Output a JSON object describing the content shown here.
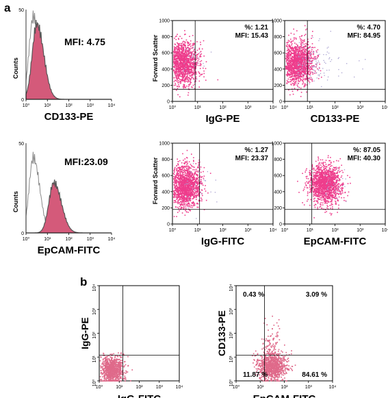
{
  "panel_letters": {
    "a": "a",
    "b": "b"
  },
  "chart_data": [
    {
      "type": "histogram",
      "panel": "a-row1-histogram",
      "xlabel": "CD133-PE",
      "ylabel": "Counts",
      "x_scale": "log",
      "xlim": [
        1,
        10000
      ],
      "ylim": [
        0,
        50
      ],
      "y_ticks": [
        "0",
        "50"
      ],
      "x_ticks": [
        "10⁰",
        "10¹",
        "10²",
        "10³",
        "10⁴"
      ],
      "annotation": "MFI: 4.75",
      "series": [
        {
          "role": "isotype-outline",
          "color": "#888888",
          "peak_x": 2.2,
          "peak_y": 46,
          "width": 0.22
        },
        {
          "role": "stained-filled",
          "color": "#d45a7a",
          "peak_x": 3.2,
          "peak_y": 42,
          "width": 0.24
        }
      ]
    },
    {
      "type": "scatter",
      "panel": "a-row1-dotplot-igg",
      "xlabel": "IgG-PE",
      "ylabel": "Forward Scatter",
      "x_scale": "log",
      "xlim": [
        1,
        10000
      ],
      "ylim": [
        0,
        1000
      ],
      "y_ticks": [
        "0",
        "200",
        "400",
        "600",
        "800",
        "1000"
      ],
      "x_ticks": [
        "10⁰",
        "10¹",
        "10²",
        "10³",
        "10⁴"
      ],
      "gate_x": 8,
      "gate_y": 150,
      "stats": {
        "percent": "%: 1.21",
        "mfi": "MFI: 15.43"
      },
      "cluster": {
        "center_x": 2.5,
        "center_y": 480,
        "spread_logx": 0.3,
        "spread_y": 130,
        "tail": "none"
      }
    },
    {
      "type": "scatter",
      "panel": "a-row1-dotplot-cd133",
      "xlabel": "CD133-PE",
      "ylabel": "",
      "x_scale": "log",
      "xlim": [
        1,
        10000
      ],
      "ylim": [
        0,
        1000
      ],
      "y_ticks": [
        "0",
        "200",
        "400",
        "600",
        "800",
        "1000"
      ],
      "x_ticks": [
        "10⁰",
        "10¹",
        "10²",
        "10³",
        "10⁴"
      ],
      "gate_x": 8,
      "gate_y": 150,
      "stats": {
        "percent": "%: 4.70",
        "mfi": "MFI: 84.95"
      },
      "cluster": {
        "center_x": 3,
        "center_y": 480,
        "spread_logx": 0.32,
        "spread_y": 130,
        "tail": "long"
      }
    },
    {
      "type": "histogram",
      "panel": "a-row2-histogram",
      "xlabel": "EpCAM-FITC",
      "ylabel": "Counts",
      "x_scale": "log",
      "xlim": [
        1,
        10000
      ],
      "ylim": [
        0,
        50
      ],
      "y_ticks": [
        "0",
        "50"
      ],
      "x_ticks": [
        "10⁰",
        "10¹",
        "10²",
        "10³",
        "10⁴"
      ],
      "annotation": "MFI:23.09",
      "series": [
        {
          "role": "isotype-outline",
          "color": "#888888",
          "peak_x": 2.2,
          "peak_y": 42,
          "width": 0.22
        },
        {
          "role": "stained-filled",
          "color": "#d45a7a",
          "peak_x": 20,
          "peak_y": 28,
          "width": 0.26
        }
      ]
    },
    {
      "type": "scatter",
      "panel": "a-row2-dotplot-igg",
      "xlabel": "IgG-FITC",
      "ylabel": "Forward Scatter",
      "x_scale": "log",
      "xlim": [
        1,
        10000
      ],
      "ylim": [
        0,
        1000
      ],
      "y_ticks": [
        "0",
        "200",
        "400",
        "600",
        "800",
        "1000"
      ],
      "x_ticks": [
        "10⁰",
        "10¹",
        "10²",
        "10³",
        "10⁴"
      ],
      "gate_x": 12,
      "gate_y": 180,
      "stats": {
        "percent": "%: 1.27",
        "mfi": "MFI: 23.37"
      },
      "cluster": {
        "center_x": 3,
        "center_y": 480,
        "spread_logx": 0.3,
        "spread_y": 130,
        "tail": "none"
      }
    },
    {
      "type": "scatter",
      "panel": "a-row2-dotplot-epcam",
      "xlabel": "EpCAM-FITC",
      "ylabel": "",
      "x_scale": "log",
      "xlim": [
        1,
        10000
      ],
      "ylim": [
        0,
        1000
      ],
      "y_ticks": [
        "0",
        "200",
        "400",
        "600",
        "800",
        "1000"
      ],
      "x_ticks": [
        "10⁰",
        "10¹",
        "10²",
        "10³",
        "10⁴"
      ],
      "gate_x": 12,
      "gate_y": 180,
      "stats": {
        "percent": "%: 87.05",
        "mfi": "MFI: 40.30"
      },
      "cluster": {
        "center_x": 40,
        "center_y": 500,
        "spread_logx": 0.32,
        "spread_y": 120,
        "tail": "none"
      }
    },
    {
      "type": "scatter",
      "panel": "b-igg-control",
      "xlabel": "IgG-FITC",
      "ylabel": "IgG-PE",
      "x_scale": "log",
      "y_scale": "log",
      "xlim": [
        1,
        10000
      ],
      "ylim": [
        1,
        10000
      ],
      "x_ticks": [
        "10⁰",
        "10¹",
        "10²",
        "10³",
        "10⁴"
      ],
      "y_ticks": [
        "10⁰",
        "10¹",
        "10²",
        "10³",
        "10⁴"
      ],
      "gate_x": 15,
      "gate_y": 12,
      "quadrants": {},
      "cluster": {
        "center_x": 4,
        "center_y": 3,
        "spread_logx": 0.3,
        "spread_logy": 0.3,
        "vertical_stream": false
      }
    },
    {
      "type": "scatter",
      "panel": "b-cd133-vs-epcam",
      "xlabel": "EpCAM-FITC",
      "ylabel": "CD133-PE",
      "x_scale": "log",
      "y_scale": "log",
      "xlim": [
        1,
        10000
      ],
      "ylim": [
        1,
        10000
      ],
      "x_ticks": [
        "10⁰",
        "10¹",
        "10²",
        "10³",
        "10⁴"
      ],
      "y_ticks": [
        "10⁰",
        "10¹",
        "10²",
        "10³",
        "10⁴"
      ],
      "gate_x": 15,
      "gate_y": 12,
      "quadrants": {
        "upper_left": "0.43 %",
        "upper_right": "3.09 %",
        "lower_left": "11.87 %",
        "lower_right": "84.61 %"
      },
      "cluster": {
        "center_x": 30,
        "center_y": 4,
        "spread_logx": 0.3,
        "spread_logy": 0.28,
        "vertical_stream": true
      }
    }
  ]
}
